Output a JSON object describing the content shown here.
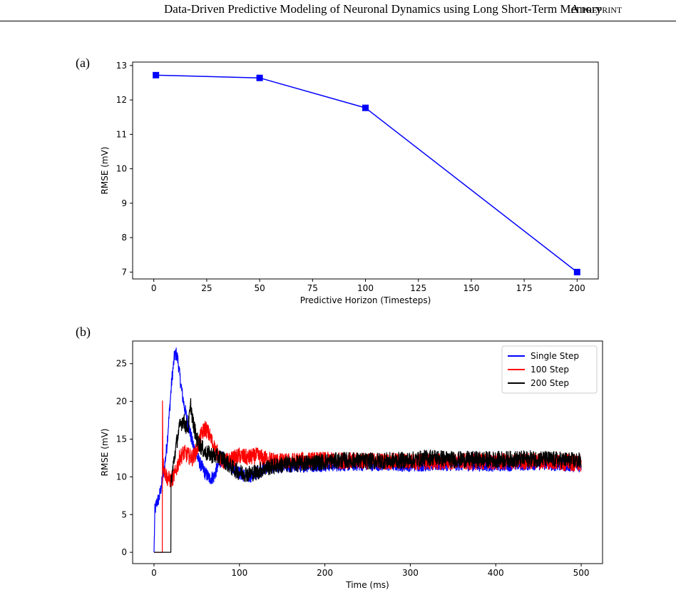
{
  "header": {
    "title": "Data-Driven Predictive Modeling of Neuronal Dynamics using Long Short-Term Memory",
    "preprint": "A preprint"
  },
  "panels": {
    "a": "(a)",
    "b": "(b)"
  },
  "colors": {
    "single": "#0000ff",
    "step100": "#ff0000",
    "step200": "#000000"
  },
  "chart_data": [
    {
      "type": "line",
      "xlabel": "Predictive Horizon (Timesteps)",
      "ylabel": "RMSE (mV)",
      "xlim": [
        -10,
        210
      ],
      "ylim": [
        6.8,
        13.1
      ],
      "xticks": [
        0,
        25,
        50,
        75,
        100,
        125,
        150,
        175,
        200
      ],
      "yticks": [
        7,
        8,
        9,
        10,
        11,
        12,
        13
      ],
      "grid": false,
      "series": [
        {
          "x": [
            1,
            50,
            100,
            200
          ],
          "y": [
            12.72,
            12.64,
            11.77,
            7.0
          ],
          "marker": "square",
          "color": "#0000ff"
        }
      ]
    },
    {
      "type": "line",
      "xlabel": "Time (ms)",
      "ylabel": "RMSE (mV)",
      "xlim": [
        -25,
        525
      ],
      "ylim": [
        -1.5,
        28
      ],
      "xticks": [
        0,
        100,
        200,
        300,
        400,
        500
      ],
      "yticks": [
        0,
        5,
        10,
        15,
        20,
        25
      ],
      "grid": false,
      "legend": "top-right",
      "series": [
        {
          "name": "Single Step",
          "color": "#0000ff",
          "x": [
            0,
            1,
            3,
            6,
            9,
            12,
            15,
            18,
            21,
            24,
            26,
            28,
            30,
            33,
            36,
            40,
            45,
            50,
            55,
            60,
            65,
            70,
            75,
            80,
            90,
            100,
            110,
            120,
            130,
            150,
            175,
            200,
            250,
            300,
            350,
            400,
            450,
            500
          ],
          "y": [
            0,
            5.5,
            6.5,
            7.2,
            9.0,
            11.0,
            14.0,
            18.5,
            23.0,
            26.0,
            26.3,
            25.5,
            23.5,
            21.0,
            19.0,
            17.0,
            14.5,
            12.8,
            11.5,
            10.5,
            9.8,
            10.0,
            11.5,
            12.5,
            11.5,
            10.5,
            10.0,
            10.5,
            11.3,
            11.4,
            11.5,
            11.6,
            11.7,
            11.6,
            11.7,
            11.6,
            11.8,
            11.5
          ]
        },
        {
          "name": "100 Step",
          "color": "#ff0000",
          "x": [
            0,
            9.8,
            10,
            10.5,
            11,
            13,
            16,
            20,
            25,
            30,
            35,
            40,
            45,
            50,
            55,
            60,
            65,
            70,
            80,
            90,
            100,
            110,
            120,
            130,
            140,
            150,
            175,
            200,
            250,
            300,
            350,
            400,
            450,
            500
          ],
          "y": [
            0,
            0,
            20.0,
            12.0,
            11.5,
            10.5,
            9.8,
            9.5,
            10.5,
            12.5,
            13.2,
            12.8,
            12.5,
            13.5,
            15.5,
            16.5,
            15.5,
            14.0,
            12.0,
            12.2,
            12.8,
            12.5,
            12.8,
            12.4,
            12.2,
            12.0,
            12.2,
            12.2,
            12.1,
            12.0,
            12.0,
            12.0,
            12.1,
            11.8
          ]
        },
        {
          "name": "200 Step",
          "color": "#000000",
          "x": [
            0,
            19.8,
            20,
            22,
            25,
            28,
            31,
            34,
            37,
            40,
            43,
            46,
            50,
            55,
            60,
            65,
            70,
            80,
            90,
            100,
            110,
            120,
            130,
            150,
            175,
            200,
            225,
            250,
            300,
            325,
            350,
            400,
            450,
            500
          ],
          "y": [
            0,
            0,
            9.5,
            11.0,
            13.5,
            15.5,
            17.0,
            17.5,
            16.8,
            16.5,
            19.5,
            17.0,
            15.0,
            14.0,
            13.2,
            13.0,
            12.8,
            12.5,
            11.3,
            10.6,
            10.4,
            10.6,
            11.2,
            11.6,
            11.8,
            12.0,
            12.2,
            12.1,
            12.2,
            12.6,
            12.3,
            12.3,
            12.4,
            12.1
          ]
        }
      ]
    }
  ]
}
